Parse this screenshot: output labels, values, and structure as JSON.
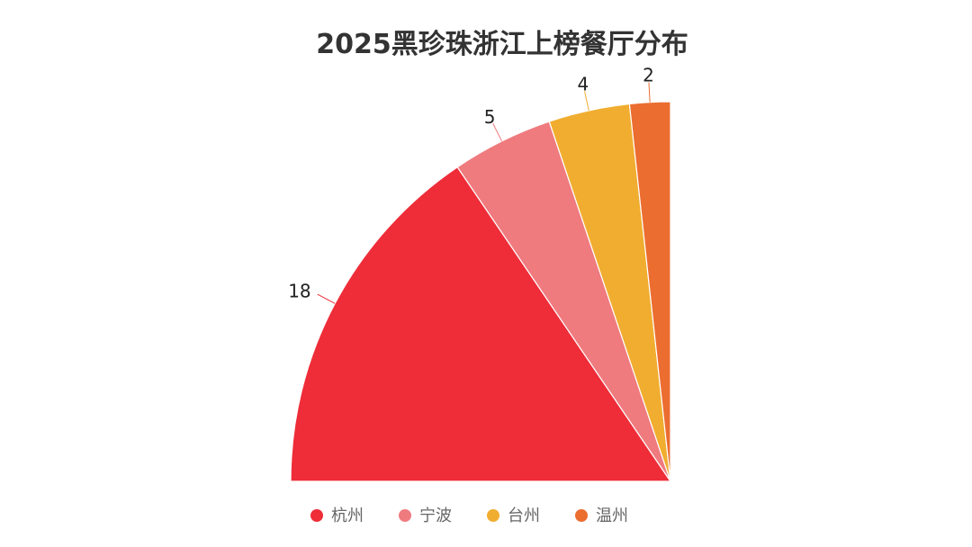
{
  "chart_data": {
    "type": "pie",
    "title": "2025黑珍珠浙江上榜餐厅分布",
    "categories": [
      "杭州",
      "宁波",
      "台州",
      "温州"
    ],
    "values": [
      18,
      5,
      4,
      2
    ],
    "colors": [
      "#ee2d38",
      "#ef7b7f",
      "#f0ad2f",
      "#eb6d30"
    ],
    "label_color": "#222222",
    "legend_position": "bottom"
  }
}
